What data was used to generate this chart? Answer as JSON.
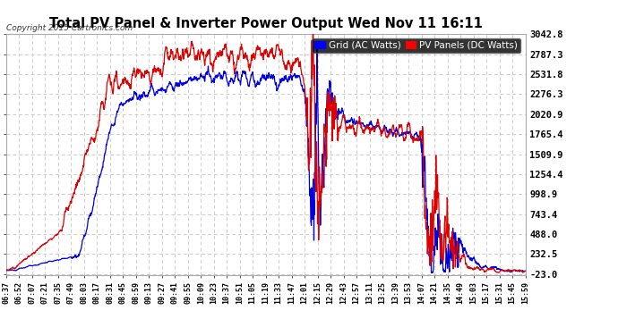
{
  "title": "Total PV Panel & Inverter Power Output Wed Nov 11 16:11",
  "copyright": "Copyright 2015 Cartronics.com",
  "legend_labels": [
    "Grid (AC Watts)",
    "PV Panels (DC Watts)"
  ],
  "legend_colors": [
    "#0000ff",
    "#ff0000"
  ],
  "legend_bg": "#000000",
  "yticks": [
    3042.8,
    2787.3,
    2531.8,
    2276.3,
    2020.9,
    1765.4,
    1509.9,
    1254.4,
    998.9,
    743.4,
    488.0,
    232.5,
    -23.0
  ],
  "ymin": -23.0,
  "ymax": 3042.8,
  "bg_color": "#ffffff",
  "plot_bg_color": "#ffffff",
  "grid_color": "#cccccc",
  "line_color_blue": "#0000dd",
  "line_color_red": "#dd0000",
  "x_tick_labels": [
    "06:37",
    "06:52",
    "07:07",
    "07:21",
    "07:35",
    "07:49",
    "08:03",
    "08:17",
    "08:31",
    "08:45",
    "08:59",
    "09:13",
    "09:27",
    "09:41",
    "09:55",
    "10:09",
    "10:23",
    "10:37",
    "10:51",
    "11:05",
    "11:19",
    "11:33",
    "11:47",
    "12:01",
    "12:15",
    "12:29",
    "12:43",
    "12:57",
    "13:11",
    "13:25",
    "13:39",
    "13:53",
    "14:07",
    "14:21",
    "14:35",
    "14:49",
    "15:03",
    "15:17",
    "15:31",
    "15:45",
    "15:59"
  ]
}
